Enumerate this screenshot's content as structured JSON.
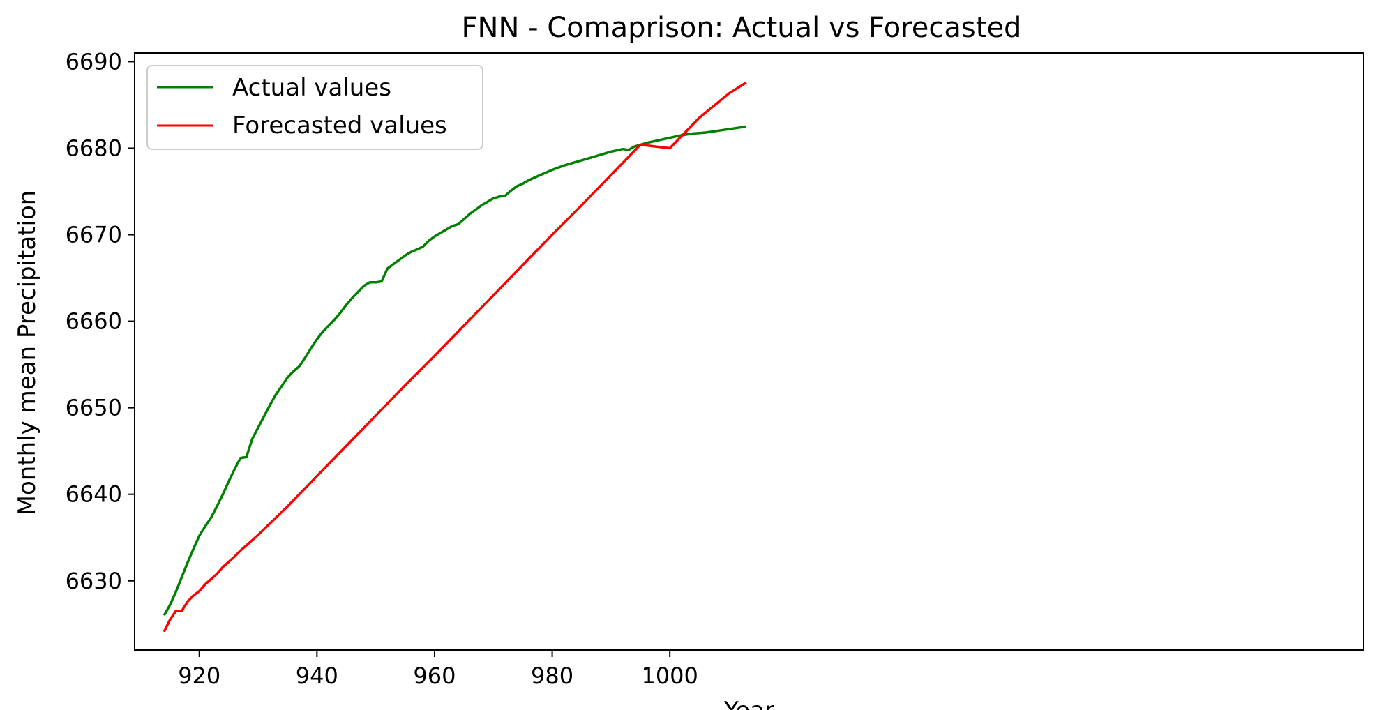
{
  "chart_data": {
    "type": "line",
    "title": "FNN - Comaprison: Actual vs Forecasted",
    "xlabel": "Year",
    "ylabel": "Monthly mean Precipitation",
    "xlim": [
      909,
      1118
    ],
    "ylim": [
      6622,
      6691
    ],
    "xticks": [
      920,
      940,
      960,
      980,
      1000
    ],
    "yticks": [
      6630,
      6640,
      6650,
      6660,
      6670,
      6680,
      6690
    ],
    "grid": false,
    "legend_position": "top-left",
    "series": [
      {
        "name": "Actual values",
        "color": "#008000",
        "x": [
          914,
          915,
          916,
          917,
          918,
          919,
          920,
          921,
          922,
          923,
          924,
          925,
          926,
          927,
          928,
          929,
          930,
          931,
          932,
          933,
          934,
          935,
          936,
          937,
          938,
          939,
          940,
          941,
          942,
          943,
          944,
          945,
          946,
          947,
          948,
          949,
          950,
          951,
          952,
          953,
          954,
          955,
          956,
          957,
          958,
          959,
          960,
          961,
          962,
          963,
          964,
          965,
          966,
          967,
          968,
          969,
          970,
          971,
          972,
          973,
          974,
          975,
          976,
          977,
          978,
          979,
          980,
          982,
          984,
          986,
          988,
          990,
          992,
          993,
          994,
          996,
          998,
          1000,
          1002,
          1004,
          1006,
          1008,
          1010,
          1012,
          1013
        ],
        "y": [
          6626.0,
          6627.2,
          6628.7,
          6630.4,
          6632.1,
          6633.7,
          6635.2,
          6636.3,
          6637.3,
          6638.6,
          6640.0,
          6641.5,
          6642.9,
          6644.2,
          6644.3,
          6646.4,
          6647.7,
          6649.0,
          6650.3,
          6651.5,
          6652.5,
          6653.5,
          6654.2,
          6654.8,
          6655.8,
          6656.9,
          6657.9,
          6658.8,
          6659.5,
          6660.2,
          6661.0,
          6661.9,
          6662.7,
          6663.4,
          6664.1,
          6664.5,
          6664.5,
          6664.6,
          6666.1,
          6666.6,
          6667.1,
          6667.6,
          6668.0,
          6668.3,
          6668.6,
          6669.3,
          6669.8,
          6670.2,
          6670.6,
          6671.0,
          6671.2,
          6671.8,
          6672.4,
          6672.9,
          6673.4,
          6673.8,
          6674.2,
          6674.4,
          6674.5,
          6675.1,
          6675.6,
          6675.9,
          6676.3,
          6676.6,
          6676.9,
          6677.2,
          6677.5,
          6678.0,
          6678.4,
          6678.8,
          6679.2,
          6679.6,
          6679.9,
          6679.8,
          6680.2,
          6680.6,
          6680.9,
          6681.2,
          6681.5,
          6681.7,
          6681.8,
          6682.0,
          6682.2,
          6682.4,
          6682.5
        ]
      },
      {
        "name": "Forecasted values",
        "color": "#ff0000",
        "x": [
          914,
          915,
          916,
          917,
          918,
          919,
          920,
          921,
          922,
          923,
          924,
          925,
          926,
          927,
          928,
          930,
          935,
          940,
          945,
          950,
          955,
          960,
          965,
          970,
          975,
          980,
          985,
          990,
          995,
          1000,
          1005,
          1010,
          1013
        ],
        "y": [
          6624.1,
          6625.5,
          6626.5,
          6626.5,
          6627.6,
          6628.3,
          6628.8,
          6629.6,
          6630.2,
          6630.8,
          6631.6,
          6632.2,
          6632.8,
          6633.5,
          6634.1,
          6635.3,
          6638.6,
          6642.1,
          6645.6,
          6649.1,
          6652.6,
          6656.0,
          6659.5,
          6663.0,
          6666.5,
          6670.0,
          6673.4,
          6676.9,
          6680.4,
          6680.0,
          6683.5,
          6686.3,
          6687.6
        ]
      }
    ]
  }
}
